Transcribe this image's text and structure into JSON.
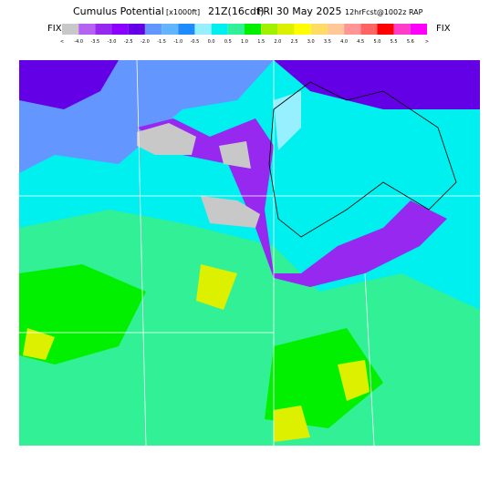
{
  "header": {
    "title": "Cumulus Potential",
    "units": "[x1000ft]",
    "valid": "21Z(16cdt)",
    "date": "FRI 30 May 2025",
    "forecast": "12hrFcst@1002z RAP",
    "fix_left": "FIX",
    "fix_right": "FIX"
  },
  "legend": {
    "labels": [
      "<",
      "-4.0",
      "-3.5",
      "-3.0",
      "-2.5",
      "-2.0",
      "-1.5",
      "-1.0",
      "-0.5",
      "0.0",
      "0.5",
      "1.0",
      "1.5",
      "2.0",
      "2.5",
      "3.0",
      "3.5",
      "4.0",
      "4.5",
      "5.0",
      "5.5",
      "5.6",
      ">"
    ],
    "colors": [
      "#c8c8c8",
      "#b464f0",
      "#9628f0",
      "#8c00ff",
      "#6400e6",
      "#6496ff",
      "#64b4ff",
      "#1e8cff",
      "#96f0ff",
      "#00f0f0",
      "#32f096",
      "#00f000",
      "#a0f000",
      "#dcf000",
      "#ffff00",
      "#ffdc64",
      "#ffc896",
      "#ff9696",
      "#ff6464",
      "#ff0000",
      "#ff3cc8",
      "#ff00ff"
    ]
  }
}
